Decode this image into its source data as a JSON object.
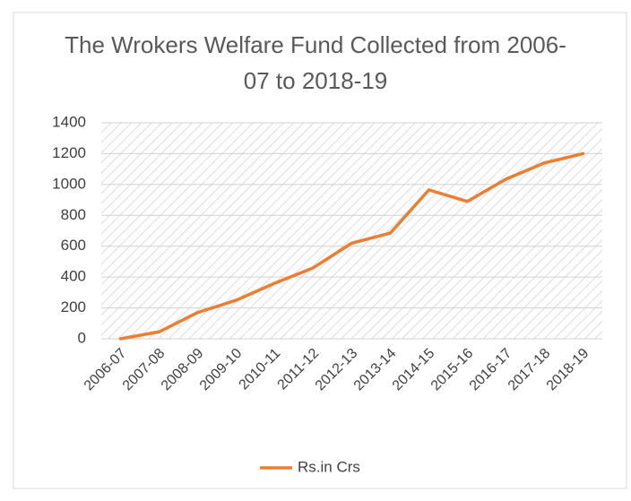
{
  "chart_data": {
    "type": "line",
    "title": "The Wrokers Welfare Fund Collected from 2006-07 to 2018-19",
    "categories": [
      "2006-07",
      "2007-08",
      "2008-09",
      "2009-10",
      "2010-11",
      "2011-12",
      "2012-13",
      "2013-14",
      "2014-15",
      "2015-16",
      "2016-17",
      "2017-18",
      "2018-19"
    ],
    "series": [
      {
        "name": "Rs.in Crs",
        "color": "#ed7d31",
        "values": [
          0,
          45,
          170,
          250,
          360,
          460,
          620,
          685,
          965,
          890,
          1035,
          1140,
          1200
        ]
      }
    ],
    "ylim": [
      0,
      1400
    ],
    "yticks": [
      0,
      200,
      400,
      600,
      800,
      1000,
      1200,
      1400
    ],
    "grid": true,
    "legend": "bottom"
  }
}
